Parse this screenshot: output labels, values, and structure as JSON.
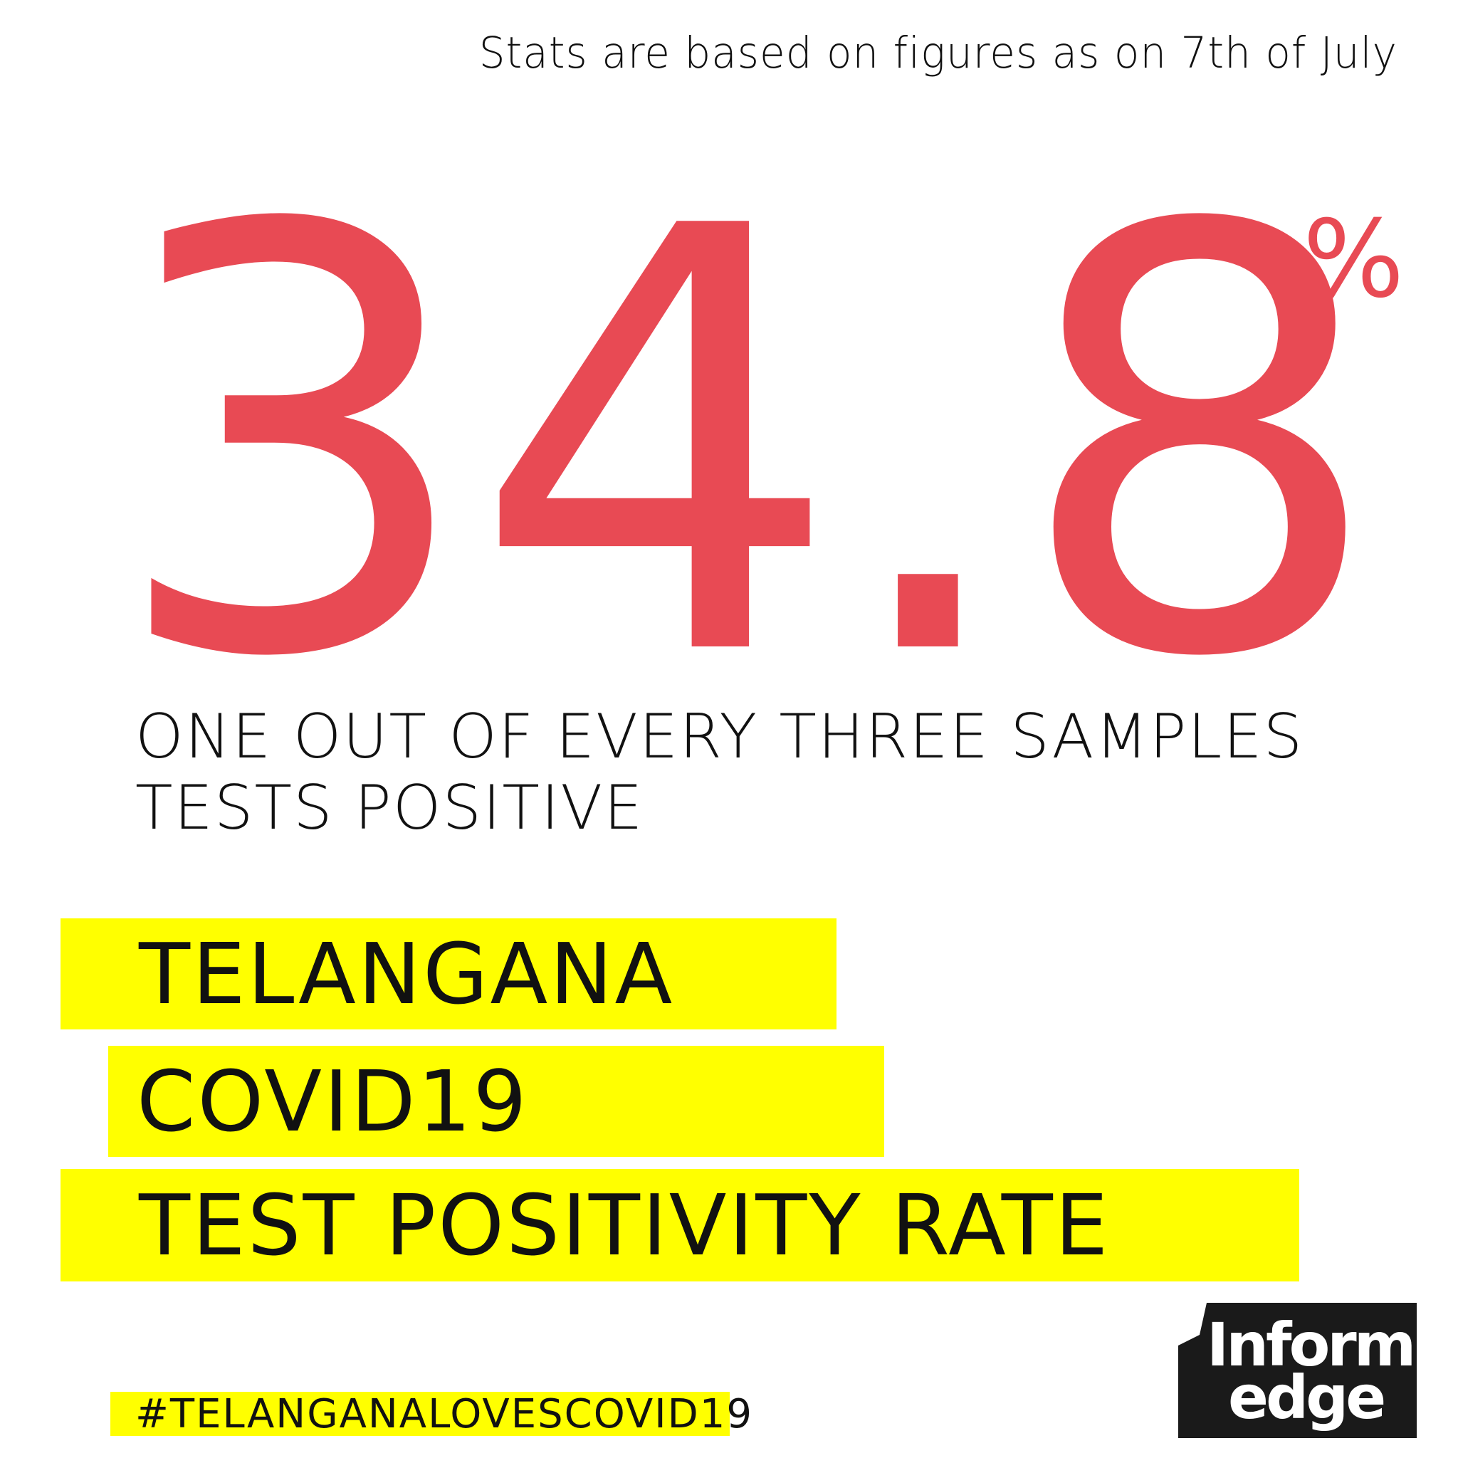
{
  "note": "Stats are based on figures as on 7th of July",
  "stat": {
    "value": "34.8",
    "unit": "%"
  },
  "subtitle": {
    "line1": "ONE OUT OF EVERY THREE SAMPLES",
    "line2": "TESTS POSITIVE"
  },
  "headline": {
    "line1": "TELANGANA",
    "line2": "COVID19",
    "line3": "TEST POSITIVITY RATE"
  },
  "hashtag": "#TELANGANALOVESCOVID19",
  "logo": {
    "line1": "Inform",
    "line2": "edge"
  },
  "colors": {
    "accent": "#e84a54",
    "highlight": "#ffff00",
    "logo_bg": "#1a1a1a"
  }
}
